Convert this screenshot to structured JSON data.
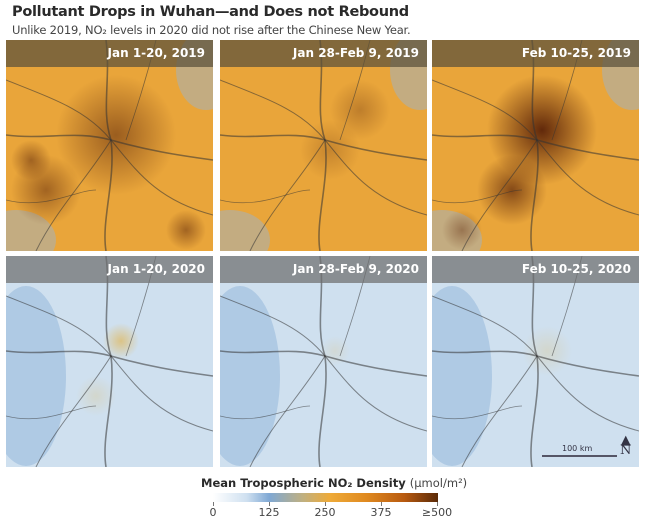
{
  "title": "Pollutant Drops in Wuhan—and Does not Rebound",
  "subtitle": "Unlike 2019, NO₂ levels in 2020 did not rise after the Chinese New Year.",
  "panels": [
    {
      "label": "Jan 1-20, 2019",
      "year": "2019",
      "intensity": "high"
    },
    {
      "label": "Jan 28-Feb 9, 2019",
      "year": "2019",
      "intensity": "moderate"
    },
    {
      "label": "Feb 10-25, 2019",
      "year": "2019",
      "intensity": "very high"
    },
    {
      "label": "Jan 1-20, 2020",
      "year": "2020",
      "intensity": "low"
    },
    {
      "label": "Jan 28-Feb 9, 2020",
      "year": "2020",
      "intensity": "very low"
    },
    {
      "label": "Feb 10-25, 2020",
      "year": "2020",
      "intensity": "very low"
    }
  ],
  "scale": {
    "label": "100 km",
    "north_icon": "north-arrow-icon",
    "north_label": "N"
  },
  "legend": {
    "title": "Mean Tropospheric NO₂ Density",
    "unit": "(μmol/m²)",
    "ticks": [
      "0",
      "125",
      "250",
      "375",
      "≥500"
    ],
    "colors": [
      "#ffffff",
      "#7fa8d4",
      "#eeaa38",
      "#e08a20",
      "#5a2a08"
    ]
  }
}
